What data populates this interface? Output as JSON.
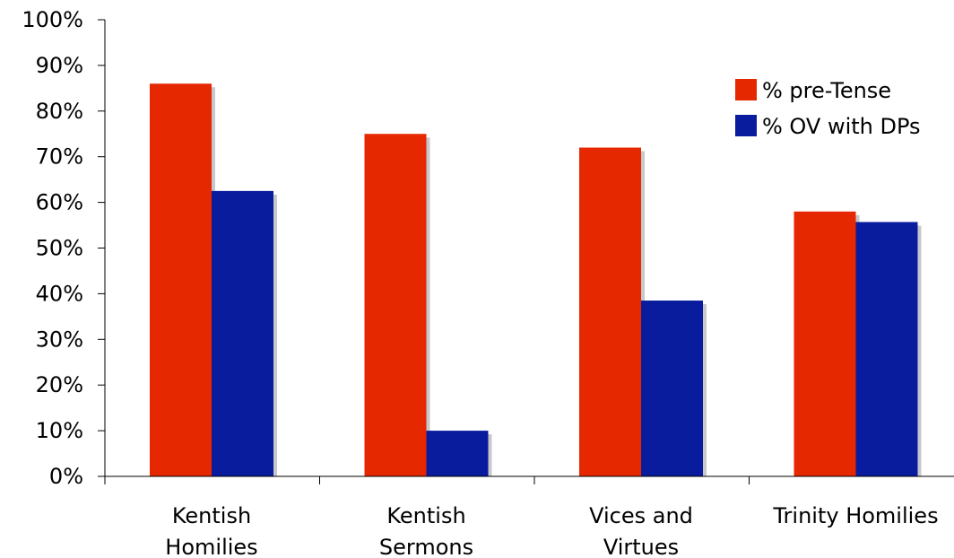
{
  "chart_data": {
    "type": "bar",
    "title": "",
    "xlabel": "",
    "ylabel": "",
    "categories": [
      [
        "Kentish",
        "Homilies"
      ],
      [
        "Kentish",
        "Sermons"
      ],
      [
        "Vices and",
        "Virtues"
      ],
      [
        "Trinity Homilies"
      ]
    ],
    "series": [
      {
        "name": "% pre-Tense",
        "color": "#e52800",
        "values": [
          86,
          75,
          72,
          58
        ]
      },
      {
        "name": "% OV with DPs",
        "color": "#0a1c9e",
        "values": [
          62.5,
          10,
          38.5,
          55.7
        ]
      }
    ],
    "ylim": [
      0,
      100
    ],
    "yticks": [
      "0%",
      "10%",
      "20%",
      "30%",
      "40%",
      "50%",
      "60%",
      "70%",
      "80%",
      "90%",
      "100%"
    ],
    "grid": false,
    "legend_position": "top-right",
    "shadow_color": "#c8c8cc",
    "axis_color": "#000000"
  }
}
